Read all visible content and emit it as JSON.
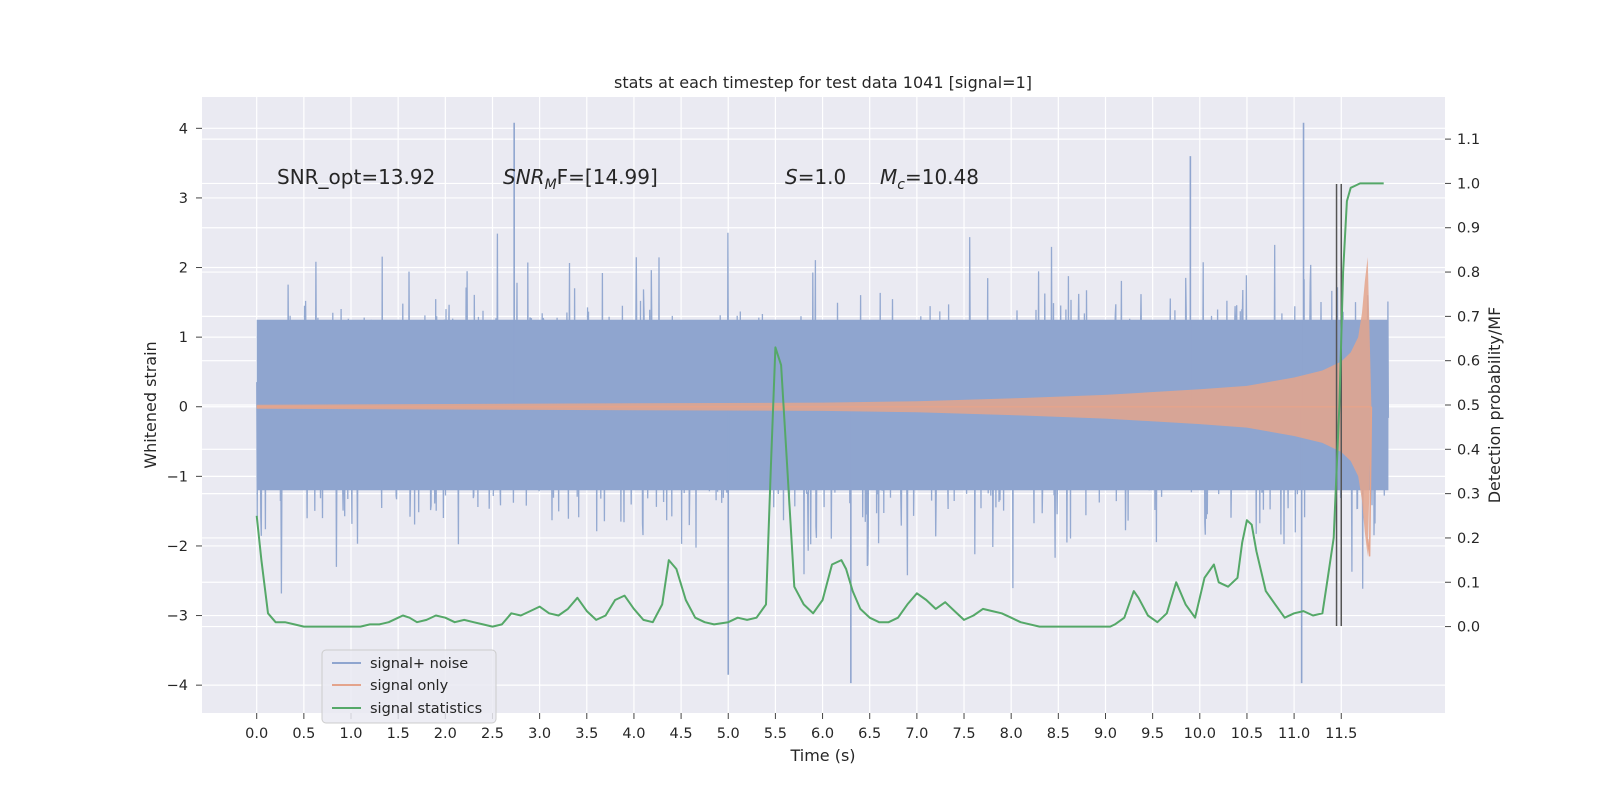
{
  "chart_data": {
    "type": "line",
    "title": "stats at each timestep for test data 1041 [signal=1]",
    "xlabel": "Time (s)",
    "ylabel": "Whitened strain",
    "y2label": "Detection probability/MF",
    "xlim": [
      -0.58,
      12.6
    ],
    "ylim": [
      -4.4,
      4.45
    ],
    "y2lim": [
      -0.195,
      1.195
    ],
    "x_ticks": [
      "0.0",
      "0.5",
      "1.0",
      "1.5",
      "2.0",
      "2.5",
      "3.0",
      "3.5",
      "4.0",
      "4.5",
      "5.0",
      "5.5",
      "6.0",
      "6.5",
      "7.0",
      "7.5",
      "8.0",
      "8.5",
      "9.0",
      "9.5",
      "10.0",
      "10.5",
      "11.0",
      "11.5"
    ],
    "y_ticks": [
      "−4",
      "−3",
      "−2",
      "−1",
      "0",
      "1",
      "2",
      "3",
      "4"
    ],
    "y2_ticks": [
      "0.0",
      "0.1",
      "0.2",
      "0.3",
      "0.4",
      "0.5",
      "0.6",
      "0.7",
      "0.8",
      "0.9",
      "1.0",
      "1.1"
    ],
    "grid": true,
    "legend_position": "lower-left",
    "annotations": {
      "snr_opt": "SNR_opt=13.92",
      "snr_mf_base": "SNR",
      "snr_mf_sub": "M",
      "snr_mf_tail": "F=[14.99]",
      "s_var": "S",
      "s_val": "=1.0",
      "mc_var": "M",
      "mc_sub": "c",
      "mc_val": "=10.48"
    },
    "series": [
      {
        "name": "signal+ noise",
        "color": "#8fa5cf",
        "axis": "left",
        "x_range": [
          0.0,
          12.0
        ],
        "envelope_max": 4.1,
        "envelope_min": -3.97,
        "peaks": [
          {
            "x": 2.73,
            "y": 4.08
          },
          {
            "x": 11.1,
            "y": 4.08
          },
          {
            "x": 9.9,
            "y": 3.6
          },
          {
            "x": 5.0,
            "y": -3.85
          },
          {
            "x": 6.3,
            "y": -3.97
          },
          {
            "x": 11.08,
            "y": -3.97
          }
        ]
      },
      {
        "name": "signal only",
        "color": "#e4a48c",
        "axis": "left",
        "x_range": [
          0.0,
          11.82
        ],
        "amplitude_points": [
          [
            0.0,
            0.03
          ],
          [
            4.0,
            0.05
          ],
          [
            6.0,
            0.06
          ],
          [
            7.0,
            0.08
          ],
          [
            8.0,
            0.12
          ],
          [
            9.0,
            0.17
          ],
          [
            10.0,
            0.25
          ],
          [
            10.5,
            0.3
          ],
          [
            11.0,
            0.42
          ],
          [
            11.3,
            0.52
          ],
          [
            11.5,
            0.65
          ],
          [
            11.6,
            0.78
          ],
          [
            11.68,
            1.0
          ],
          [
            11.72,
            1.35
          ],
          [
            11.75,
            1.8
          ],
          [
            11.78,
            2.15
          ],
          [
            11.82,
            0.0
          ]
        ],
        "trace_points": [
          [
            11.78,
            -1.9
          ],
          [
            11.8,
            -2.15
          ],
          [
            11.82,
            0.0
          ]
        ]
      },
      {
        "name": "signal statistics",
        "color": "#55a868",
        "axis": "right",
        "x": [
          0.0,
          0.05,
          0.12,
          0.2,
          0.3,
          0.4,
          0.5,
          0.6,
          0.7,
          0.8,
          0.9,
          1.0,
          1.1,
          1.2,
          1.3,
          1.4,
          1.5,
          1.55,
          1.62,
          1.7,
          1.8,
          1.9,
          2.0,
          2.1,
          2.2,
          2.3,
          2.4,
          2.5,
          2.6,
          2.7,
          2.8,
          2.9,
          3.0,
          3.1,
          3.2,
          3.3,
          3.4,
          3.5,
          3.6,
          3.7,
          3.8,
          3.9,
          4.0,
          4.1,
          4.2,
          4.3,
          4.37,
          4.45,
          4.55,
          4.65,
          4.75,
          4.85,
          5.0,
          5.1,
          5.2,
          5.3,
          5.4,
          5.45,
          5.5,
          5.56,
          5.62,
          5.7,
          5.8,
          5.9,
          6.0,
          6.1,
          6.2,
          6.25,
          6.32,
          6.4,
          6.5,
          6.6,
          6.7,
          6.8,
          6.9,
          7.0,
          7.1,
          7.2,
          7.3,
          7.4,
          7.5,
          7.6,
          7.7,
          7.8,
          7.9,
          8.0,
          8.1,
          8.3,
          8.5,
          8.7,
          8.9,
          9.0,
          9.05,
          9.1,
          9.2,
          9.3,
          9.35,
          9.45,
          9.55,
          9.65,
          9.75,
          9.85,
          9.95,
          10.05,
          10.15,
          10.2,
          10.3,
          10.4,
          10.45,
          10.5,
          10.55,
          10.6,
          10.7,
          10.8,
          10.9,
          11.0,
          11.1,
          11.2,
          11.3,
          11.35,
          11.42,
          11.48,
          11.52,
          11.56,
          11.6,
          11.65,
          11.7,
          11.8,
          11.95
        ],
        "y": [
          0.25,
          0.15,
          0.03,
          0.01,
          0.01,
          0.005,
          0.0,
          0.0,
          0.0,
          0.0,
          0.0,
          0.0,
          0.0,
          0.005,
          0.005,
          0.01,
          0.02,
          0.025,
          0.02,
          0.01,
          0.015,
          0.025,
          0.02,
          0.01,
          0.015,
          0.01,
          0.005,
          0.0,
          0.005,
          0.03,
          0.025,
          0.035,
          0.045,
          0.03,
          0.025,
          0.04,
          0.065,
          0.035,
          0.015,
          0.025,
          0.06,
          0.07,
          0.04,
          0.015,
          0.01,
          0.05,
          0.15,
          0.13,
          0.06,
          0.02,
          0.01,
          0.005,
          0.01,
          0.02,
          0.015,
          0.02,
          0.05,
          0.35,
          0.63,
          0.59,
          0.38,
          0.09,
          0.05,
          0.03,
          0.06,
          0.14,
          0.15,
          0.13,
          0.08,
          0.04,
          0.02,
          0.01,
          0.01,
          0.02,
          0.05,
          0.075,
          0.06,
          0.04,
          0.055,
          0.035,
          0.015,
          0.025,
          0.04,
          0.035,
          0.03,
          0.02,
          0.01,
          0.0,
          0.0,
          0.0,
          0.0,
          0.0,
          0.0,
          0.005,
          0.02,
          0.08,
          0.065,
          0.025,
          0.01,
          0.03,
          0.1,
          0.05,
          0.02,
          0.11,
          0.14,
          0.1,
          0.09,
          0.11,
          0.19,
          0.24,
          0.23,
          0.17,
          0.08,
          0.05,
          0.02,
          0.03,
          0.035,
          0.025,
          0.03,
          0.1,
          0.2,
          0.5,
          0.8,
          0.96,
          0.99,
          0.995,
          1.0,
          1.0,
          1.0
        ]
      }
    ],
    "vertical_markers": [
      {
        "x": 11.45,
        "y_range": [
          -3.15,
          3.2
        ],
        "color": "#555555"
      },
      {
        "x": 11.5,
        "y_range": [
          -3.15,
          3.2
        ],
        "color": "#555555"
      }
    ]
  }
}
